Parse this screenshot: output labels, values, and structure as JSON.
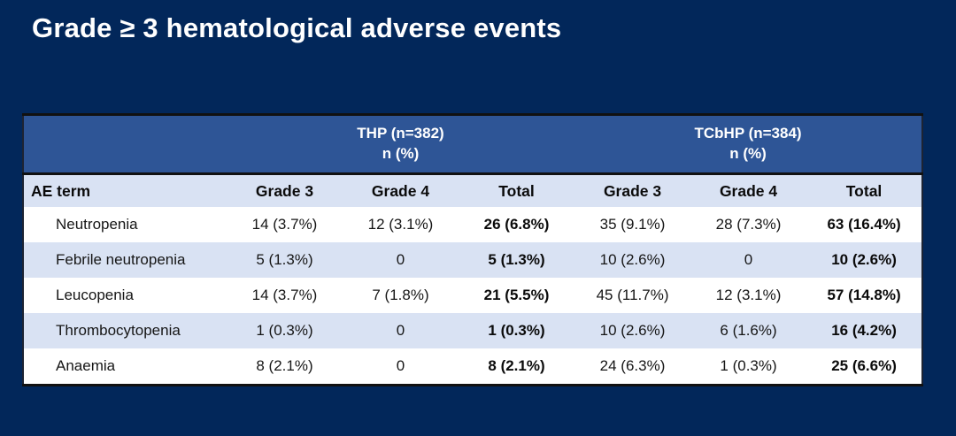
{
  "title": "Grade ≥ 3 hematological adverse events",
  "colors": {
    "slide_background": "#02275a",
    "group_header_band": "#2e5596",
    "light_row": "#d9e2f3",
    "white_row": "#ffffff",
    "title_text": "#ffffff",
    "table_border": "#111111"
  },
  "table": {
    "groups": [
      {
        "line1": "THP (n=382)",
        "line2": "n (%)"
      },
      {
        "line1": "TCbHP (n=384)",
        "line2": "n (%)"
      }
    ],
    "columns": [
      "AE term",
      "Grade 3",
      "Grade 4",
      "Total",
      "Grade 3",
      "Grade 4",
      "Total"
    ],
    "rows": [
      {
        "ae_term": "Neutropenia",
        "values": [
          "14 (3.7%)",
          "12 (3.1%)",
          "26 (6.8%)",
          "35 (9.1%)",
          "28 (7.3%)",
          "63 (16.4%)"
        ]
      },
      {
        "ae_term": "Febrile neutropenia",
        "values": [
          "5 (1.3%)",
          "0",
          "5 (1.3%)",
          "10 (2.6%)",
          "0",
          "10 (2.6%)"
        ]
      },
      {
        "ae_term": "Leucopenia",
        "values": [
          "14 (3.7%)",
          "7 (1.8%)",
          "21 (5.5%)",
          "45 (11.7%)",
          "12 (3.1%)",
          "57 (14.8%)"
        ]
      },
      {
        "ae_term": "Thrombocytopenia",
        "values": [
          "1 (0.3%)",
          "0",
          "1 (0.3%)",
          "10 (2.6%)",
          "6 (1.6%)",
          "16 (4.2%)"
        ]
      },
      {
        "ae_term": "Anaemia",
        "values": [
          "8 (2.1%)",
          "0",
          "8 (2.1%)",
          "24 (6.3%)",
          "1 (0.3%)",
          "25 (6.6%)"
        ]
      }
    ]
  }
}
